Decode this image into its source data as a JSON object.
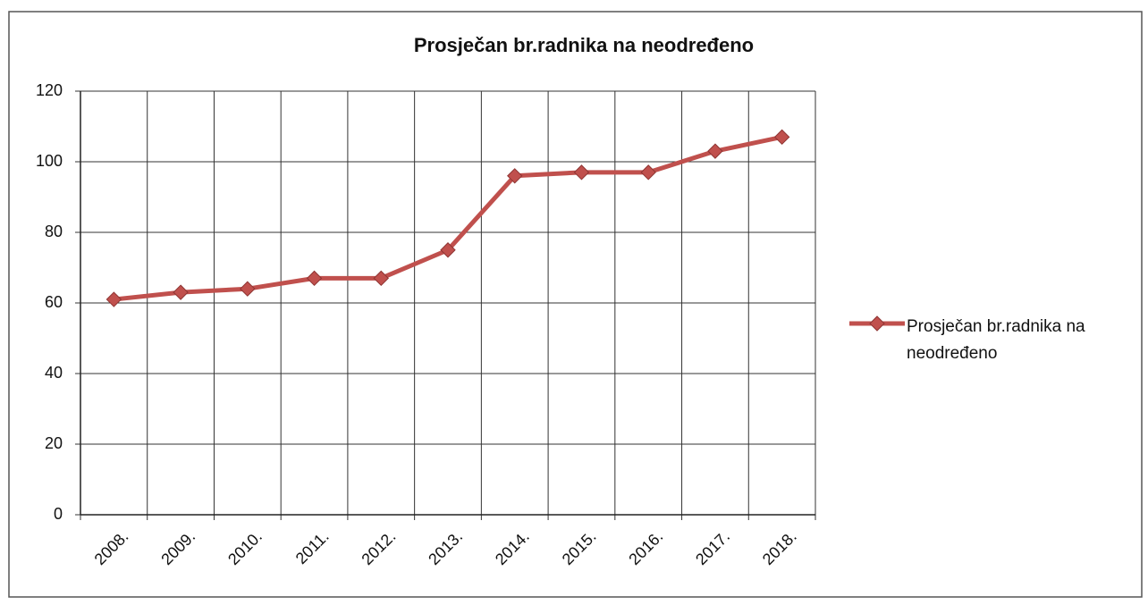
{
  "chart_data": {
    "type": "line",
    "title": "Prosječan br.radnika na neodređeno",
    "categories": [
      "2008.",
      "2009.",
      "2010.",
      "2011.",
      "2012.",
      "2013.",
      "2014.",
      "2015.",
      "2016.",
      "2017.",
      "2018."
    ],
    "series": [
      {
        "name": "Prosječan br.radnika na neodređeno",
        "color": "#c0504d",
        "values": [
          61,
          63,
          64,
          67,
          67,
          75,
          96,
          97,
          97,
          103,
          107
        ]
      }
    ],
    "ylim": [
      0,
      120
    ],
    "yticks": [
      0,
      20,
      40,
      60,
      80,
      100,
      120
    ],
    "grid": true,
    "legend": "right"
  }
}
